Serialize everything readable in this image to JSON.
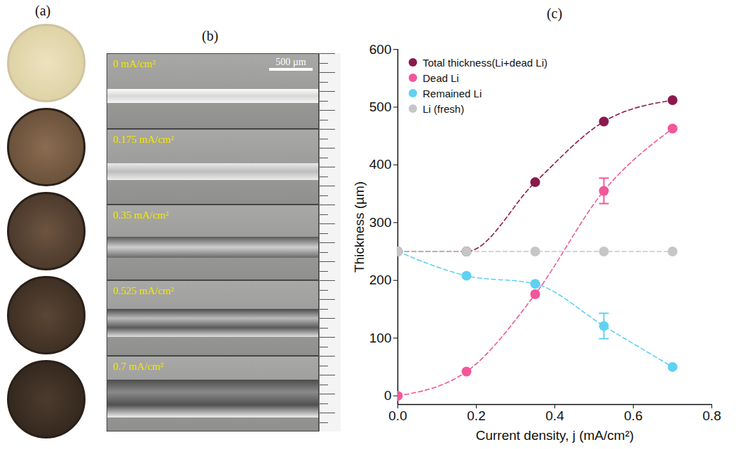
{
  "panels": {
    "a": {
      "label": "(a)"
    },
    "b": {
      "label": "(b)",
      "scale_bar": "500 µm",
      "images": [
        "0 mA/cm²",
        "0.175 mA/cm²",
        "0.35 mA/cm²",
        "0.525 mA/cm²",
        "0.7 mA/cm²"
      ]
    }
  },
  "chart_data": {
    "type": "line",
    "title": "(c)",
    "x_label": "Current density, j (mA/cm²)",
    "y_label": "Thickness (µm)",
    "x": [
      0,
      0.175,
      0.35,
      0.525,
      0.7
    ],
    "series": [
      {
        "name": "Total thickness(Li+dead Li)",
        "color": "#8a1a4c",
        "values": [
          250,
          250,
          370,
          475,
          512
        ],
        "errors": [
          null,
          null,
          null,
          null,
          null
        ]
      },
      {
        "name": "Dead Li",
        "color": "#f2579a",
        "values": [
          0,
          42,
          176,
          355,
          463
        ],
        "errors": [
          null,
          null,
          null,
          22,
          null
        ]
      },
      {
        "name": "Remained Li",
        "color": "#5fd2f2",
        "values": [
          250,
          208,
          194,
          121,
          50
        ],
        "errors": [
          null,
          null,
          null,
          22,
          null
        ]
      },
      {
        "name": "Li (fresh)",
        "color": "#c6c6c6",
        "values": [
          250,
          250,
          250,
          250,
          250
        ],
        "errors": [
          null,
          null,
          null,
          null,
          null
        ]
      }
    ],
    "xlim": [
      0,
      0.8
    ],
    "xticks": [
      {
        "value": 0,
        "label": "0.0"
      },
      {
        "value": 0.2,
        "label": "0.2"
      },
      {
        "value": 0.4,
        "label": "0.4"
      },
      {
        "value": 0.6,
        "label": "0.6"
      },
      {
        "value": 0.8,
        "label": "0.8"
      }
    ],
    "ylim": [
      -15,
      600
    ],
    "yticks": [
      0,
      100,
      200,
      300,
      400,
      500,
      600
    ],
    "marker": "circle",
    "line_style": "dashed",
    "legend": "upper left",
    "grid": false
  }
}
